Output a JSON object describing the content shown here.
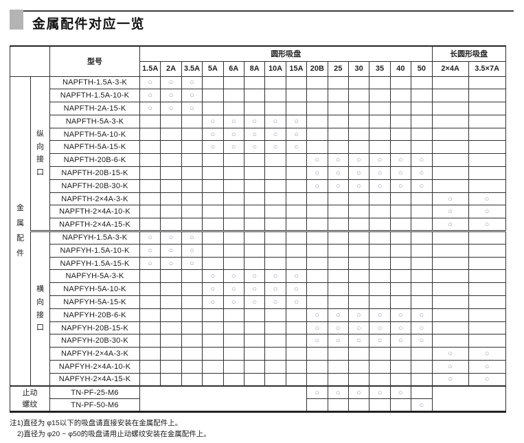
{
  "page_title": "金属配件对应一览",
  "table": {
    "header": {
      "model_label": "型号",
      "round_group_label": "圆形吸盘",
      "oval_group_label": "长圆形吸盘",
      "round_columns": [
        "1.5A",
        "2A",
        "3.5A",
        "5A",
        "6A",
        "8A",
        "10A",
        "15A",
        "20B",
        "25",
        "30",
        "35",
        "40",
        "50"
      ],
      "oval_columns": [
        "2×4A",
        "3.5×7A"
      ]
    },
    "mark_symbol": "○",
    "metal_fitting_group": {
      "label": "金属配件",
      "sections": [
        {
          "label": "纵向接口",
          "rows": [
            {
              "model": "NAPFTH-1.5A-3-K",
              "sizes": [
                "1.5A",
                "2A",
                "3.5A"
              ]
            },
            {
              "model": "NAPFTH-1.5A-10-K",
              "sizes": [
                "1.5A",
                "2A",
                "3.5A"
              ]
            },
            {
              "model": "NAPFTH-2A-15-K",
              "sizes": [
                "1.5A",
                "2A",
                "3.5A"
              ]
            },
            {
              "model": "NAPFTH-5A-3-K",
              "sizes": [
                "5A",
                "6A",
                "8A",
                "10A",
                "15A"
              ]
            },
            {
              "model": "NAPFTH-5A-10-K",
              "sizes": [
                "5A",
                "6A",
                "8A",
                "10A",
                "15A"
              ]
            },
            {
              "model": "NAPFTH-5A-15-K",
              "sizes": [
                "5A",
                "6A",
                "8A",
                "10A",
                "15A"
              ]
            },
            {
              "model": "NAPFTH-20B-6-K",
              "sizes": [
                "20B",
                "25",
                "30",
                "35",
                "40",
                "50"
              ]
            },
            {
              "model": "NAPFTH-20B-15-K",
              "sizes": [
                "20B",
                "25",
                "30",
                "35",
                "40",
                "50"
              ]
            },
            {
              "model": "NAPFTH-20B-30-K",
              "sizes": [
                "20B",
                "25",
                "30",
                "35",
                "40",
                "50"
              ]
            },
            {
              "model": "NAPFTH-2×4A-3-K",
              "sizes": [
                "2×4A",
                "3.5×7A"
              ]
            },
            {
              "model": "NAPFTH-2×4A-10-K",
              "sizes": [
                "2×4A",
                "3.5×7A"
              ]
            },
            {
              "model": "NAPFTH-2×4A-15-K",
              "sizes": [
                "2×4A",
                "3.5×7A"
              ]
            }
          ]
        },
        {
          "label": "横向接口",
          "rows": [
            {
              "model": "NAPFYH-1.5A-3-K",
              "sizes": [
                "1.5A",
                "2A",
                "3.5A"
              ]
            },
            {
              "model": "NAPFYH-1.5A-10-K",
              "sizes": [
                "1.5A",
                "2A",
                "3.5A"
              ]
            },
            {
              "model": "NAPFYH-1.5A-15-K",
              "sizes": [
                "1.5A",
                "2A",
                "3.5A"
              ]
            },
            {
              "model": "NAPFYH-5A-3-K",
              "sizes": [
                "5A",
                "6A",
                "8A",
                "10A",
                "15A"
              ]
            },
            {
              "model": "NAPFYH-5A-10-K",
              "sizes": [
                "5A",
                "6A",
                "8A",
                "10A",
                "15A"
              ]
            },
            {
              "model": "NAPFYH-5A-15-K",
              "sizes": [
                "5A",
                "6A",
                "8A",
                "10A",
                "15A"
              ]
            },
            {
              "model": "NAPFYH-20B-6-K",
              "sizes": [
                "20B",
                "25",
                "30",
                "35",
                "40",
                "50"
              ]
            },
            {
              "model": "NAPFYH-20B-15-K",
              "sizes": [
                "20B",
                "25",
                "30",
                "35",
                "40",
                "50"
              ]
            },
            {
              "model": "NAPFYH-20B-30-K",
              "sizes": [
                "20B",
                "25",
                "30",
                "35",
                "40",
                "50"
              ]
            },
            {
              "model": "NAPFYH-2×4A-3-K",
              "sizes": [
                "2×4A",
                "3.5×7A"
              ]
            },
            {
              "model": "NAPFYH-2×4A-10-K",
              "sizes": [
                "2×4A",
                "3.5×7A"
              ]
            },
            {
              "model": "NAPFYH-2×4A-15-K",
              "sizes": [
                "2×4A",
                "3.5×7A"
              ]
            }
          ]
        }
      ]
    },
    "stopper_group": {
      "label": "止动螺纹",
      "rows": [
        {
          "model": "TN-PF-25-M6",
          "sizes": [
            "20B",
            "25",
            "30",
            "35",
            "40"
          ]
        },
        {
          "model": "TN-PF-50-M6",
          "sizes": [
            "50"
          ]
        }
      ]
    }
  },
  "notes": [
    "注1)直径为 φ15以下的吸盘请直接安装在金属配件上。",
    "2)直径为 φ20 ~ φ50的吸盘请用止动螺纹安装在金属配件上。"
  ]
}
